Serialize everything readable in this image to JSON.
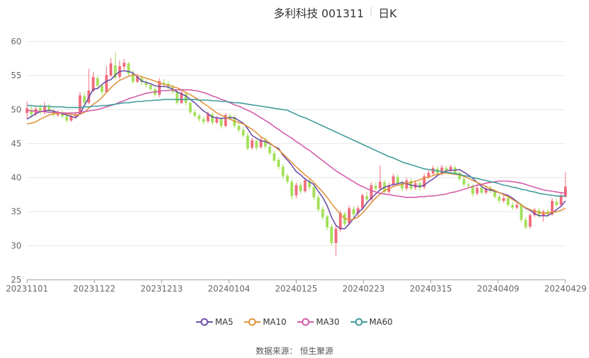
{
  "header": {
    "title": "多利科技 001311",
    "period": "日K"
  },
  "source": {
    "label": "数据来源：",
    "value": "恒生聚源"
  },
  "colors": {
    "up": "#f26d7d",
    "down": "#a3e05a",
    "grid": "#e6e6e6",
    "axis": "#666666"
  },
  "chart_data": {
    "type": "candlestick",
    "title": "多利科技 001311",
    "subtitle": "日K",
    "ylim": [
      25,
      60
    ],
    "yticks": [
      25,
      30,
      35,
      40,
      45,
      50,
      55,
      60
    ],
    "xticks": [
      "20231101",
      "20231122",
      "20231213",
      "20240104",
      "20240125",
      "20240223",
      "20240315",
      "20240409",
      "20240429"
    ],
    "grid": true,
    "legend_position": "bottom",
    "candles": [
      [
        49.5,
        50.2,
        51.2,
        48.6
      ],
      [
        50.0,
        49.3,
        50.7,
        48.8
      ],
      [
        49.4,
        50.1,
        50.6,
        49.0
      ],
      [
        50.3,
        49.6,
        50.8,
        49.2
      ],
      [
        49.6,
        50.5,
        51.1,
        49.3
      ],
      [
        50.4,
        49.8,
        50.9,
        49.5
      ],
      [
        49.8,
        49.2,
        50.2,
        48.9
      ],
      [
        49.2,
        49.6,
        49.9,
        48.9
      ],
      [
        49.6,
        49.0,
        49.9,
        48.7
      ],
      [
        49.0,
        48.4,
        49.3,
        48.1
      ],
      [
        48.4,
        49.0,
        49.3,
        48.2
      ],
      [
        49.0,
        49.3,
        49.7,
        48.8
      ],
      [
        49.4,
        52.1,
        52.6,
        49.3
      ],
      [
        52.0,
        51.0,
        52.5,
        50.6
      ],
      [
        51.0,
        52.8,
        56.0,
        50.8
      ],
      [
        52.7,
        54.8,
        55.5,
        52.6
      ],
      [
        54.6,
        53.5,
        55.0,
        53.2
      ],
      [
        53.5,
        52.6,
        53.8,
        52.1
      ],
      [
        52.6,
        55.1,
        56.4,
        52.5
      ],
      [
        55.0,
        56.8,
        57.6,
        54.8
      ],
      [
        56.5,
        54.7,
        58.4,
        54.5
      ],
      [
        54.8,
        56.4,
        57.2,
        54.5
      ],
      [
        56.3,
        56.9,
        57.5,
        55.6
      ],
      [
        56.8,
        55.3,
        57.0,
        55.0
      ],
      [
        55.3,
        54.1,
        55.8,
        53.8
      ],
      [
        54.1,
        54.8,
        55.3,
        53.9
      ],
      [
        54.6,
        54.0,
        55.1,
        53.6
      ],
      [
        54.0,
        53.6,
        54.4,
        53.2
      ],
      [
        53.6,
        53.0,
        53.9,
        52.7
      ],
      [
        53.0,
        52.2,
        53.3,
        51.9
      ],
      [
        52.2,
        54.2,
        54.6,
        51.8
      ],
      [
        54.0,
        53.8,
        54.5,
        53.3
      ],
      [
        53.8,
        53.3,
        54.2,
        52.9
      ],
      [
        53.3,
        52.6,
        53.7,
        52.3
      ],
      [
        52.6,
        51.0,
        52.9,
        50.7
      ],
      [
        51.0,
        52.5,
        52.8,
        50.8
      ],
      [
        52.3,
        51.0,
        52.6,
        50.6
      ],
      [
        51.0,
        49.6,
        51.2,
        49.3
      ],
      [
        49.6,
        49.1,
        50.0,
        48.8
      ],
      [
        49.1,
        48.6,
        49.4,
        48.2
      ],
      [
        48.6,
        48.2,
        49.0,
        47.8
      ],
      [
        48.3,
        49.4,
        49.7,
        48.0
      ],
      [
        49.3,
        48.1,
        49.6,
        47.8
      ],
      [
        48.1,
        48.7,
        49.1,
        47.9
      ],
      [
        48.6,
        47.6,
        48.9,
        47.2
      ],
      [
        47.6,
        49.2,
        49.5,
        47.4
      ],
      [
        49.1,
        48.8,
        49.4,
        48.4
      ],
      [
        48.9,
        47.6,
        49.2,
        47.3
      ],
      [
        47.6,
        47.0,
        48.1,
        46.6
      ],
      [
        47.0,
        46.2,
        47.4,
        45.9
      ],
      [
        46.2,
        44.3,
        46.6,
        44.0
      ],
      [
        44.4,
        45.5,
        45.9,
        44.1
      ],
      [
        45.4,
        44.4,
        45.8,
        44.0
      ],
      [
        44.5,
        45.6,
        46.0,
        44.2
      ],
      [
        45.5,
        44.6,
        45.9,
        44.2
      ],
      [
        44.6,
        43.6,
        45.0,
        43.3
      ],
      [
        43.6,
        42.5,
        44.0,
        42.2
      ],
      [
        42.6,
        41.6,
        43.0,
        41.2
      ],
      [
        41.6,
        40.2,
        42.0,
        39.8
      ],
      [
        40.3,
        39.4,
        40.6,
        39.0
      ],
      [
        39.4,
        37.3,
        39.8,
        36.8
      ],
      [
        37.4,
        38.9,
        39.3,
        37.0
      ],
      [
        38.9,
        38.0,
        39.3,
        37.6
      ],
      [
        38.0,
        39.6,
        40.0,
        37.8
      ],
      [
        39.5,
        38.6,
        39.9,
        38.2
      ],
      [
        38.6,
        37.1,
        39.0,
        36.7
      ],
      [
        37.1,
        35.3,
        37.5,
        35.0
      ],
      [
        35.4,
        34.2,
        35.8,
        33.8
      ],
      [
        34.3,
        32.7,
        34.6,
        32.3
      ],
      [
        32.8,
        30.4,
        33.2,
        30.0
      ],
      [
        30.4,
        32.5,
        32.9,
        28.5
      ],
      [
        32.4,
        34.8,
        35.2,
        32.0
      ],
      [
        34.7,
        33.2,
        35.0,
        32.8
      ],
      [
        33.3,
        35.5,
        35.9,
        33.0
      ],
      [
        35.4,
        34.6,
        35.8,
        34.2
      ],
      [
        34.7,
        35.5,
        35.9,
        34.3
      ],
      [
        35.5,
        37.4,
        37.7,
        35.2
      ],
      [
        37.3,
        36.8,
        37.9,
        36.4
      ],
      [
        36.8,
        38.9,
        39.3,
        36.5
      ],
      [
        38.8,
        38.4,
        39.3,
        38.0
      ],
      [
        38.4,
        39.4,
        41.8,
        38.1
      ],
      [
        39.3,
        37.9,
        39.7,
        37.5
      ],
      [
        37.9,
        38.9,
        39.3,
        37.6
      ],
      [
        38.9,
        40.2,
        40.6,
        38.6
      ],
      [
        40.1,
        39.2,
        40.5,
        38.8
      ],
      [
        39.2,
        38.4,
        39.6,
        38.0
      ],
      [
        38.4,
        39.6,
        40.0,
        38.1
      ],
      [
        39.5,
        38.4,
        39.9,
        38.1
      ],
      [
        38.5,
        39.2,
        39.6,
        38.2
      ],
      [
        39.2,
        38.5,
        39.5,
        38.1
      ],
      [
        38.6,
        40.2,
        40.6,
        38.3
      ],
      [
        40.1,
        40.7,
        41.1,
        39.8
      ],
      [
        40.6,
        41.4,
        41.8,
        40.3
      ],
      [
        41.3,
        40.6,
        41.7,
        40.2
      ],
      [
        40.6,
        41.5,
        41.9,
        40.3
      ],
      [
        41.4,
        41.0,
        41.8,
        40.6
      ],
      [
        41.0,
        41.6,
        41.9,
        40.7
      ],
      [
        41.5,
        40.7,
        41.8,
        40.4
      ],
      [
        40.7,
        39.8,
        41.0,
        39.5
      ],
      [
        39.8,
        39.0,
        40.2,
        38.7
      ],
      [
        39.0,
        38.8,
        39.4,
        38.5
      ],
      [
        38.8,
        37.6,
        39.1,
        37.2
      ],
      [
        37.7,
        38.5,
        38.9,
        37.4
      ],
      [
        38.5,
        37.8,
        38.9,
        37.5
      ],
      [
        37.8,
        38.4,
        38.8,
        37.5
      ],
      [
        38.4,
        38.0,
        38.8,
        37.7
      ],
      [
        38.0,
        37.2,
        38.3,
        36.9
      ],
      [
        37.2,
        36.6,
        37.5,
        36.2
      ],
      [
        36.6,
        37.0,
        37.4,
        36.3
      ],
      [
        37.0,
        36.0,
        37.3,
        35.7
      ],
      [
        36.0,
        35.6,
        36.4,
        35.3
      ],
      [
        35.6,
        36.0,
        36.3,
        35.3
      ],
      [
        36.0,
        33.8,
        36.3,
        33.4
      ],
      [
        33.8,
        32.7,
        34.2,
        32.4
      ],
      [
        32.8,
        34.5,
        34.8,
        32.5
      ],
      [
        34.5,
        35.3,
        35.6,
        34.2
      ],
      [
        35.2,
        34.4,
        35.6,
        34.1
      ],
      [
        34.4,
        35.0,
        35.3,
        33.5
      ],
      [
        35.0,
        34.6,
        35.4,
        34.2
      ],
      [
        34.6,
        36.6,
        37.0,
        34.4
      ],
      [
        36.5,
        36.0,
        36.9,
        35.7
      ],
      [
        36.0,
        37.3,
        37.7,
        35.8
      ],
      [
        37.2,
        38.7,
        40.8,
        37.0
      ]
    ],
    "series": [
      {
        "name": "MA5",
        "color": "#6b4ca8",
        "values": [
          48.6,
          49.0,
          49.4,
          49.7,
          49.8,
          49.9,
          49.8,
          49.6,
          49.4,
          49.2,
          49.0,
          48.8,
          49.4,
          50.6,
          51.8,
          53.0,
          53.1,
          53.7,
          54.2,
          54.4,
          55.1,
          55.6,
          55.7,
          55.6,
          55.4,
          54.8,
          54.2,
          54.0,
          53.8,
          53.5,
          53.4,
          53.4,
          53.3,
          53.0,
          52.6,
          52.3,
          52.0,
          51.5,
          51.0,
          50.4,
          49.8,
          49.4,
          48.9,
          48.8,
          48.7,
          48.8,
          48.8,
          48.8,
          48.4,
          48.0,
          47.2,
          46.2,
          45.8,
          45.4,
          45.3,
          45.0,
          44.6,
          44.3,
          43.3,
          42.6,
          41.8,
          40.9,
          40.4,
          39.8,
          39.4,
          39.0,
          38.0,
          37.1,
          35.9,
          34.2,
          33.0,
          32.5,
          32.5,
          33.2,
          34.0,
          34.9,
          35.4,
          36.3,
          37.0,
          37.6,
          38.2,
          38.6,
          38.8,
          39.0,
          39.1,
          39.3,
          39.1,
          38.9,
          38.8,
          38.7,
          38.9,
          39.4,
          39.8,
          40.3,
          40.7,
          41.0,
          41.1,
          41.1,
          41.2,
          40.8,
          40.4,
          39.9,
          39.3,
          38.7,
          38.3,
          38.2,
          38.0,
          37.8,
          37.6,
          37.4,
          37.0,
          36.5,
          36.0,
          35.5,
          35.2,
          34.7,
          34.4,
          34.4,
          34.4,
          34.8,
          35.3,
          35.8,
          36.6
        ]
      },
      {
        "name": "MA10",
        "color": "#e0923c",
        "values": [
          47.9,
          48.0,
          48.2,
          48.6,
          48.9,
          49.2,
          49.4,
          49.5,
          49.5,
          49.4,
          49.3,
          49.2,
          49.3,
          49.6,
          50.2,
          50.8,
          51.2,
          51.8,
          52.5,
          53.2,
          53.8,
          54.3,
          54.6,
          54.9,
          55.1,
          55.0,
          54.8,
          54.6,
          54.4,
          54.2,
          53.9,
          53.7,
          53.6,
          53.4,
          53.2,
          52.9,
          52.5,
          52.2,
          51.8,
          51.4,
          50.9,
          50.5,
          50.0,
          49.5,
          49.2,
          48.9,
          48.6,
          48.3,
          48.1,
          47.9,
          47.5,
          47.1,
          46.6,
          46.0,
          45.6,
          45.1,
          44.6,
          44.1,
          43.5,
          42.9,
          42.2,
          41.6,
          41.0,
          40.4,
          39.9,
          39.3,
          38.6,
          37.9,
          37.1,
          36.2,
          35.4,
          34.6,
          34.0,
          33.8,
          33.9,
          34.2,
          34.8,
          35.5,
          36.3,
          37.0,
          37.6,
          38.1,
          38.4,
          38.7,
          38.9,
          39.0,
          39.2,
          39.3,
          39.5,
          39.7,
          39.9,
          40.1,
          40.3,
          40.5,
          40.6,
          40.7,
          40.6,
          40.5,
          40.4,
          40.2,
          39.9,
          39.6,
          39.3,
          39.0,
          38.7,
          38.4,
          38.1,
          37.8,
          37.5,
          37.2,
          36.8,
          36.4,
          36.0,
          35.6,
          35.3,
          35.1,
          34.9,
          34.8,
          34.8,
          34.9,
          35.0,
          35.2,
          35.5
        ]
      },
      {
        "name": "MA30",
        "color": "#d45aa8",
        "values": [
          49.9,
          49.8,
          49.8,
          49.7,
          49.7,
          49.6,
          49.6,
          49.6,
          49.5,
          49.5,
          49.5,
          49.5,
          49.6,
          49.7,
          49.8,
          49.9,
          50.0,
          50.2,
          50.4,
          50.6,
          50.8,
          51.1,
          51.3,
          51.6,
          51.8,
          52.0,
          52.2,
          52.4,
          52.5,
          52.6,
          52.7,
          52.8,
          52.8,
          52.9,
          52.9,
          52.9,
          52.9,
          52.9,
          52.8,
          52.7,
          52.5,
          52.3,
          52.0,
          51.8,
          51.5,
          51.3,
          51.0,
          50.7,
          50.5,
          50.2,
          49.9,
          49.6,
          49.2,
          48.8,
          48.4,
          48.0,
          47.5,
          47.1,
          46.6,
          46.2,
          45.8,
          45.3,
          44.9,
          44.4,
          44.0,
          43.5,
          43.0,
          42.5,
          42.0,
          41.5,
          41.0,
          40.6,
          40.2,
          39.8,
          39.4,
          39.0,
          38.7,
          38.4,
          38.1,
          37.9,
          37.7,
          37.6,
          37.5,
          37.4,
          37.3,
          37.2,
          37.1,
          37.1,
          37.1,
          37.2,
          37.2,
          37.3,
          37.3,
          37.4,
          37.5,
          37.6,
          37.8,
          37.9,
          38.1,
          38.3,
          38.5,
          38.7,
          38.9,
          39.0,
          39.2,
          39.3,
          39.4,
          39.5,
          39.5,
          39.5,
          39.4,
          39.3,
          39.2,
          39.0,
          38.8,
          38.6,
          38.4,
          38.2,
          38.1,
          38.0,
          37.9,
          37.8,
          37.7
        ]
      },
      {
        "name": "MA60",
        "color": "#3f9a9a",
        "values": [
          50.6,
          50.6,
          50.5,
          50.5,
          50.5,
          50.5,
          50.4,
          50.4,
          50.4,
          50.3,
          50.3,
          50.3,
          50.3,
          50.4,
          50.4,
          50.5,
          50.5,
          50.6,
          50.6,
          50.7,
          50.8,
          50.9,
          51.0,
          51.0,
          51.1,
          51.2,
          51.2,
          51.3,
          51.3,
          51.4,
          51.4,
          51.5,
          51.5,
          51.5,
          51.5,
          51.5,
          51.5,
          51.5,
          51.5,
          51.4,
          51.4,
          51.4,
          51.3,
          51.3,
          51.2,
          51.2,
          51.1,
          51.0,
          51.0,
          50.9,
          50.8,
          50.7,
          50.6,
          50.5,
          50.4,
          50.3,
          50.2,
          50.1,
          50.0,
          49.9,
          49.6,
          49.3,
          49.0,
          48.8,
          48.5,
          48.2,
          47.9,
          47.6,
          47.3,
          47.0,
          46.7,
          46.4,
          46.1,
          45.8,
          45.5,
          45.2,
          44.9,
          44.6,
          44.3,
          44.0,
          43.7,
          43.4,
          43.1,
          42.9,
          42.6,
          42.3,
          42.1,
          41.9,
          41.7,
          41.5,
          41.3,
          41.2,
          41.1,
          41.0,
          40.9,
          40.8,
          40.7,
          40.6,
          40.5,
          40.3,
          40.2,
          40.0,
          39.9,
          39.7,
          39.6,
          39.4,
          39.3,
          39.1,
          38.9,
          38.8,
          38.6,
          38.5,
          38.3,
          38.2,
          38.0,
          37.9,
          37.7,
          37.6,
          37.5,
          37.4,
          37.3,
          37.3,
          37.3
        ]
      }
    ]
  }
}
